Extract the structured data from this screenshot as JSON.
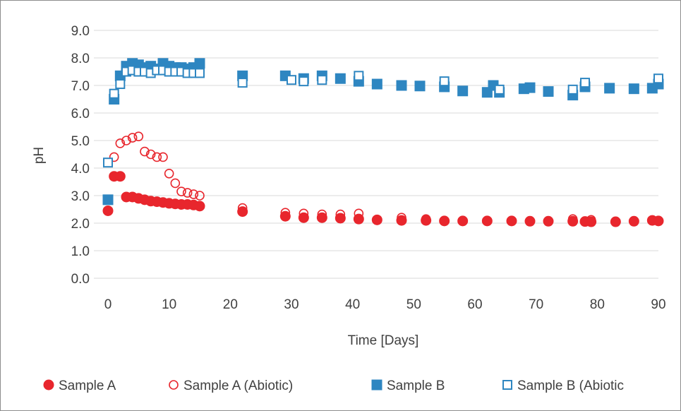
{
  "chart_data": {
    "type": "scatter",
    "xlabel": "Time [Days]",
    "ylabel": "pH",
    "xlim": [
      0,
      90
    ],
    "ylim": [
      0,
      9
    ],
    "xticks": [
      "0",
      "10",
      "20",
      "30",
      "40",
      "50",
      "60",
      "70",
      "80",
      "90"
    ],
    "yticks": [
      "0.0",
      "1.0",
      "2.0",
      "3.0",
      "4.0",
      "5.0",
      "6.0",
      "7.0",
      "8.0",
      "9.0"
    ],
    "grid": "horizontal",
    "legend_position": "bottom",
    "series": [
      {
        "name": "Sample A",
        "marker": "circle-filled",
        "color": "#e8262d",
        "x": [
          0,
          1,
          2,
          3,
          4,
          5,
          6,
          7,
          8,
          9,
          10,
          11,
          12,
          13,
          14,
          15,
          22,
          29,
          32,
          35,
          38,
          41,
          44,
          48,
          52,
          55,
          58,
          62,
          66,
          69,
          72,
          76,
          78,
          79,
          83,
          86,
          89,
          90
        ],
        "y": [
          2.45,
          3.7,
          3.7,
          2.95,
          2.95,
          2.9,
          2.85,
          2.8,
          2.78,
          2.75,
          2.72,
          2.7,
          2.68,
          2.68,
          2.66,
          2.62,
          2.42,
          2.25,
          2.2,
          2.2,
          2.18,
          2.15,
          2.12,
          2.1,
          2.1,
          2.08,
          2.08,
          2.08,
          2.08,
          2.07,
          2.07,
          2.07,
          2.06,
          2.05,
          2.05,
          2.07,
          2.1,
          2.08
        ]
      },
      {
        "name": "Sample A (Abiotic)",
        "marker": "circle-open",
        "color": "#e8262d",
        "x": [
          1,
          2,
          3,
          4,
          5,
          6,
          7,
          8,
          9,
          10,
          11,
          12,
          13,
          14,
          15,
          22,
          29,
          32,
          35,
          38,
          41,
          48,
          52,
          76,
          79,
          89
        ],
        "y": [
          4.4,
          4.9,
          5.0,
          5.1,
          5.15,
          4.6,
          4.5,
          4.4,
          4.4,
          3.8,
          3.45,
          3.15,
          3.1,
          3.05,
          3.0,
          2.55,
          2.38,
          2.35,
          2.32,
          2.32,
          2.35,
          2.2,
          2.15,
          2.15,
          2.12,
          2.1
        ]
      },
      {
        "name": "Sample B",
        "marker": "square-filled",
        "color": "#2e86c1",
        "x": [
          0,
          1,
          2,
          3,
          4,
          5,
          6,
          7,
          8,
          9,
          10,
          11,
          12,
          13,
          14,
          15,
          22,
          29,
          32,
          35,
          38,
          41,
          44,
          48,
          51,
          55,
          58,
          62,
          63,
          64,
          68,
          69,
          72,
          76,
          78,
          82,
          86,
          89,
          90
        ],
        "y": [
          2.85,
          6.5,
          7.35,
          7.7,
          7.8,
          7.75,
          7.65,
          7.7,
          7.6,
          7.8,
          7.7,
          7.65,
          7.65,
          7.6,
          7.65,
          7.8,
          7.35,
          7.35,
          7.25,
          7.35,
          7.25,
          7.15,
          7.05,
          7.0,
          6.98,
          6.95,
          6.8,
          6.75,
          7.0,
          6.75,
          6.88,
          6.92,
          6.78,
          6.65,
          6.95,
          6.9,
          6.88,
          6.9,
          7.05
        ]
      },
      {
        "name": "Sample B (Abiotic",
        "marker": "square-open",
        "color": "#2e86c1",
        "x": [
          0,
          1,
          2,
          3,
          4,
          5,
          6,
          7,
          8,
          9,
          10,
          11,
          12,
          13,
          14,
          15,
          22,
          30,
          32,
          35,
          41,
          55,
          64,
          76,
          78,
          90
        ],
        "y": [
          4.2,
          6.7,
          7.05,
          7.5,
          7.55,
          7.5,
          7.5,
          7.45,
          7.55,
          7.55,
          7.5,
          7.5,
          7.5,
          7.45,
          7.45,
          7.45,
          7.1,
          7.2,
          7.15,
          7.2,
          7.35,
          7.15,
          6.85,
          6.85,
          7.1,
          7.25
        ]
      }
    ]
  }
}
